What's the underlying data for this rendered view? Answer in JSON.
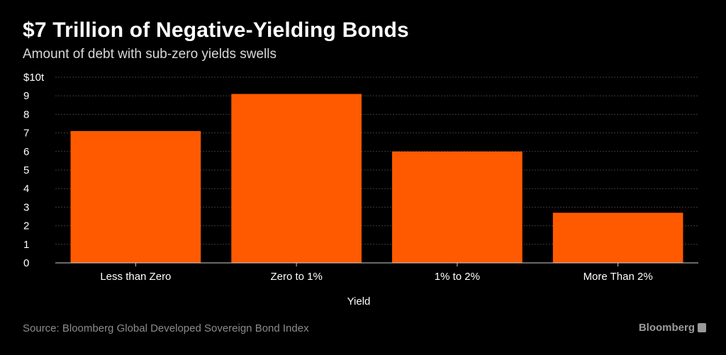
{
  "title": "$7 Trillion of Negative-Yielding Bonds",
  "subtitle": "Amount of debt with sub-zero yields swells",
  "source": "Source: Bloomberg Global Developed Sovereign Bond Index",
  "brand": "Bloomberg",
  "colors": {
    "background": "#000000",
    "bar": "#ff5a00",
    "gridline": "#3c3c3c",
    "text": "#ffffff"
  },
  "chart_data": {
    "type": "bar",
    "title": "$7 Trillion of Negative-Yielding Bonds",
    "subtitle": "Amount of debt with sub-zero yields swells",
    "xlabel": "Yield",
    "ylabel": "",
    "categories": [
      "Less than Zero",
      "Zero to 1%",
      "1% to 2%",
      "More Than 2%"
    ],
    "values": [
      7.1,
      9.1,
      6.0,
      2.7
    ],
    "unit": "trillion USD",
    "ylim": [
      0,
      10
    ],
    "yticks": [
      0,
      1,
      2,
      3,
      4,
      5,
      6,
      7,
      8,
      9,
      10
    ],
    "ytick_labels": [
      "0",
      "1",
      "2",
      "3",
      "4",
      "5",
      "6",
      "7",
      "8",
      "9",
      "$10t"
    ],
    "grid": true,
    "legend": "none"
  }
}
